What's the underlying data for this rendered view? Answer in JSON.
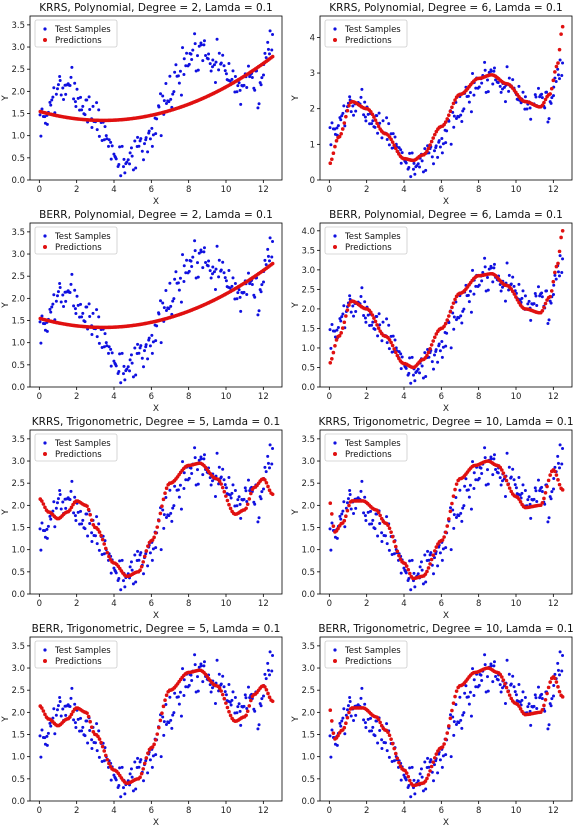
{
  "figure": {
    "background": "#ffffff"
  },
  "colors": {
    "test_samples": "#1010e0",
    "predictions": "#e01010",
    "axes": "#000000"
  },
  "legend": {
    "placement": "upper-left",
    "labels": [
      "Test Samples",
      "Predictions"
    ]
  },
  "chart_data": [
    {
      "type": "scatter",
      "title": "KRRS, Polynomial, Degree = 2, Lamda = 0.1",
      "xlabel": "X",
      "ylabel": "Y",
      "xlim": [
        -0.5,
        13
      ],
      "ylim": [
        0,
        3.7
      ],
      "xticks": [
        0,
        2,
        4,
        6,
        8,
        10,
        12
      ],
      "yticks": [
        0.0,
        0.5,
        1.0,
        1.5,
        2.0,
        2.5,
        3.0,
        3.5
      ],
      "model": "poly",
      "coef": [
        1.55,
        -0.12,
        0.0175
      ],
      "series": [
        {
          "name": "Test Samples",
          "color": "#1010e0",
          "role": "samples"
        },
        {
          "name": "Predictions",
          "color": "#e01010",
          "role": "predictions"
        }
      ]
    },
    {
      "type": "scatter",
      "title": "KRRS, Polynomial, Degree = 6, Lamda = 0.1",
      "xlabel": "X",
      "ylabel": "Y",
      "xlim": [
        -0.5,
        13
      ],
      "ylim": [
        0,
        4.6
      ],
      "xticks": [
        0,
        2,
        4,
        6,
        8,
        10,
        12
      ],
      "yticks": [
        0,
        1,
        2,
        3,
        4
      ],
      "model": "interp",
      "knots": [
        [
          0,
          0.45
        ],
        [
          0.5,
          1.2
        ],
        [
          1.2,
          2.2
        ],
        [
          2,
          2.0
        ],
        [
          3,
          1.3
        ],
        [
          4,
          0.6
        ],
        [
          4.5,
          0.55
        ],
        [
          5,
          0.7
        ],
        [
          6,
          1.5
        ],
        [
          7,
          2.4
        ],
        [
          8,
          2.85
        ],
        [
          8.7,
          2.95
        ],
        [
          9.5,
          2.7
        ],
        [
          10.5,
          2.2
        ],
        [
          11.3,
          2.05
        ],
        [
          11.8,
          2.4
        ],
        [
          12.2,
          3.2
        ],
        [
          12.5,
          4.3
        ]
      ],
      "series": [
        {
          "name": "Test Samples",
          "color": "#1010e0",
          "role": "samples"
        },
        {
          "name": "Predictions",
          "color": "#e01010",
          "role": "predictions"
        }
      ]
    },
    {
      "type": "scatter",
      "title": "BERR, Polynomial, Degree = 2, Lamda = 0.1",
      "xlabel": "X",
      "ylabel": "Y",
      "xlim": [
        -0.5,
        13
      ],
      "ylim": [
        0,
        3.7
      ],
      "xticks": [
        0,
        2,
        4,
        6,
        8,
        10,
        12
      ],
      "yticks": [
        0.0,
        0.5,
        1.0,
        1.5,
        2.0,
        2.5,
        3.0,
        3.5
      ],
      "model": "poly",
      "coef": [
        1.55,
        -0.12,
        0.0175
      ],
      "series": [
        {
          "name": "Test Samples",
          "color": "#1010e0",
          "role": "samples"
        },
        {
          "name": "Predictions",
          "color": "#e01010",
          "role": "predictions"
        }
      ]
    },
    {
      "type": "scatter",
      "title": "BERR, Polynomial, Degree = 6, Lamda = 0.1",
      "xlabel": "X",
      "ylabel": "Y",
      "xlim": [
        -0.5,
        13
      ],
      "ylim": [
        0,
        4.2
      ],
      "xticks": [
        0,
        2,
        4,
        6,
        8,
        10,
        12
      ],
      "yticks": [
        0.0,
        0.5,
        1.0,
        1.5,
        2.0,
        2.5,
        3.0,
        3.5,
        4.0
      ],
      "model": "interp",
      "knots": [
        [
          0,
          0.6
        ],
        [
          0.5,
          1.3
        ],
        [
          1.2,
          2.2
        ],
        [
          2,
          2.0
        ],
        [
          3,
          1.3
        ],
        [
          4,
          0.6
        ],
        [
          4.5,
          0.5
        ],
        [
          5,
          0.7
        ],
        [
          6,
          1.5
        ],
        [
          7,
          2.4
        ],
        [
          8,
          2.85
        ],
        [
          8.7,
          2.9
        ],
        [
          9.5,
          2.6
        ],
        [
          10.5,
          2.0
        ],
        [
          11.3,
          1.9
        ],
        [
          11.8,
          2.3
        ],
        [
          12.2,
          3.1
        ],
        [
          12.5,
          4.0
        ]
      ],
      "series": [
        {
          "name": "Test Samples",
          "color": "#1010e0",
          "role": "samples"
        },
        {
          "name": "Predictions",
          "color": "#e01010",
          "role": "predictions"
        }
      ]
    },
    {
      "type": "scatter",
      "title": "KRRS, Trigonometric, Degree = 5, Lamda = 0.1",
      "xlabel": "X",
      "ylabel": "Y",
      "xlim": [
        -0.5,
        13
      ],
      "ylim": [
        0,
        3.7
      ],
      "xticks": [
        0,
        2,
        4,
        6,
        8,
        10,
        12
      ],
      "yticks": [
        0.0,
        0.5,
        1.0,
        1.5,
        2.0,
        2.5,
        3.0,
        3.5
      ],
      "model": "interp",
      "knots": [
        [
          0,
          2.15
        ],
        [
          0.5,
          1.85
        ],
        [
          1,
          1.7
        ],
        [
          1.5,
          1.85
        ],
        [
          2,
          2.1
        ],
        [
          2.5,
          2.0
        ],
        [
          3,
          1.5
        ],
        [
          4,
          0.7
        ],
        [
          4.7,
          0.4
        ],
        [
          5.3,
          0.5
        ],
        [
          6,
          1.2
        ],
        [
          7,
          2.5
        ],
        [
          8,
          2.9
        ],
        [
          8.6,
          2.95
        ],
        [
          9.5,
          2.6
        ],
        [
          10.5,
          1.8
        ],
        [
          11,
          1.9
        ],
        [
          11.5,
          2.4
        ],
        [
          12,
          2.6
        ],
        [
          12.5,
          2.25
        ]
      ],
      "series": [
        {
          "name": "Test Samples",
          "color": "#1010e0",
          "role": "samples"
        },
        {
          "name": "Predictions",
          "color": "#e01010",
          "role": "predictions"
        }
      ]
    },
    {
      "type": "scatter",
      "title": "KRRS, Trigonometric, Degree = 10, Lamda = 0.1",
      "xlabel": "X",
      "ylabel": "Y",
      "xlim": [
        -0.5,
        13
      ],
      "ylim": [
        0,
        3.7
      ],
      "xticks": [
        0,
        2,
        4,
        6,
        8,
        10,
        12
      ],
      "yticks": [
        0.0,
        0.5,
        1.0,
        1.5,
        2.0,
        2.5,
        3.0,
        3.5
      ],
      "model": "interp",
      "knots": [
        [
          0,
          2.1
        ],
        [
          0.3,
          1.4
        ],
        [
          0.7,
          1.6
        ],
        [
          1.2,
          2.1
        ],
        [
          1.8,
          2.1
        ],
        [
          2.5,
          1.9
        ],
        [
          3,
          1.6
        ],
        [
          4,
          0.7
        ],
        [
          4.5,
          0.35
        ],
        [
          5,
          0.4
        ],
        [
          6,
          1.2
        ],
        [
          7,
          2.6
        ],
        [
          7.8,
          2.9
        ],
        [
          8.5,
          3.0
        ],
        [
          9,
          2.9
        ],
        [
          10,
          2.2
        ],
        [
          10.5,
          1.95
        ],
        [
          11.3,
          2.0
        ],
        [
          12,
          2.8
        ],
        [
          12.5,
          2.35
        ]
      ],
      "series": [
        {
          "name": "Test Samples",
          "color": "#1010e0",
          "role": "samples"
        },
        {
          "name": "Predictions",
          "color": "#e01010",
          "role": "predictions"
        }
      ]
    },
    {
      "type": "scatter",
      "title": "BERR, Trigonometric, Degree = 5, Lamda = 0.1",
      "xlabel": "X",
      "ylabel": "Y",
      "xlim": [
        -0.5,
        13
      ],
      "ylim": [
        0,
        3.7
      ],
      "xticks": [
        0,
        2,
        4,
        6,
        8,
        10,
        12
      ],
      "yticks": [
        0.0,
        0.5,
        1.0,
        1.5,
        2.0,
        2.5,
        3.0,
        3.5
      ],
      "model": "interp",
      "knots": [
        [
          0,
          2.15
        ],
        [
          0.5,
          1.85
        ],
        [
          1,
          1.7
        ],
        [
          1.5,
          1.85
        ],
        [
          2,
          2.1
        ],
        [
          2.5,
          2.0
        ],
        [
          3,
          1.5
        ],
        [
          4,
          0.7
        ],
        [
          4.7,
          0.4
        ],
        [
          5.3,
          0.5
        ],
        [
          6,
          1.2
        ],
        [
          7,
          2.5
        ],
        [
          8,
          2.9
        ],
        [
          8.6,
          2.95
        ],
        [
          9.5,
          2.6
        ],
        [
          10.5,
          1.8
        ],
        [
          11,
          1.9
        ],
        [
          11.5,
          2.4
        ],
        [
          12,
          2.6
        ],
        [
          12.5,
          2.25
        ]
      ],
      "series": [
        {
          "name": "Test Samples",
          "color": "#1010e0",
          "role": "samples"
        },
        {
          "name": "Predictions",
          "color": "#e01010",
          "role": "predictions"
        }
      ]
    },
    {
      "type": "scatter",
      "title": "BERR, Trigonometric, Degree = 10, Lamda = 0.1",
      "xlabel": "X",
      "ylabel": "Y",
      "xlim": [
        -0.5,
        13
      ],
      "ylim": [
        0,
        3.7
      ],
      "xticks": [
        0,
        2,
        4,
        6,
        8,
        10,
        12
      ],
      "yticks": [
        0.0,
        0.5,
        1.0,
        1.5,
        2.0,
        2.5,
        3.0,
        3.5
      ],
      "model": "interp",
      "knots": [
        [
          0,
          2.1
        ],
        [
          0.3,
          1.4
        ],
        [
          0.7,
          1.6
        ],
        [
          1.2,
          2.1
        ],
        [
          1.8,
          2.1
        ],
        [
          2.5,
          1.9
        ],
        [
          3,
          1.6
        ],
        [
          4,
          0.7
        ],
        [
          4.5,
          0.35
        ],
        [
          5,
          0.4
        ],
        [
          6,
          1.2
        ],
        [
          7,
          2.6
        ],
        [
          7.8,
          2.9
        ],
        [
          8.5,
          3.0
        ],
        [
          9,
          2.9
        ],
        [
          10,
          2.2
        ],
        [
          10.5,
          1.95
        ],
        [
          11.3,
          2.0
        ],
        [
          12,
          2.8
        ],
        [
          12.5,
          2.35
        ]
      ],
      "series": [
        {
          "name": "Test Samples",
          "color": "#1010e0",
          "role": "samples"
        },
        {
          "name": "Predictions",
          "color": "#e01010",
          "role": "predictions"
        }
      ]
    }
  ]
}
